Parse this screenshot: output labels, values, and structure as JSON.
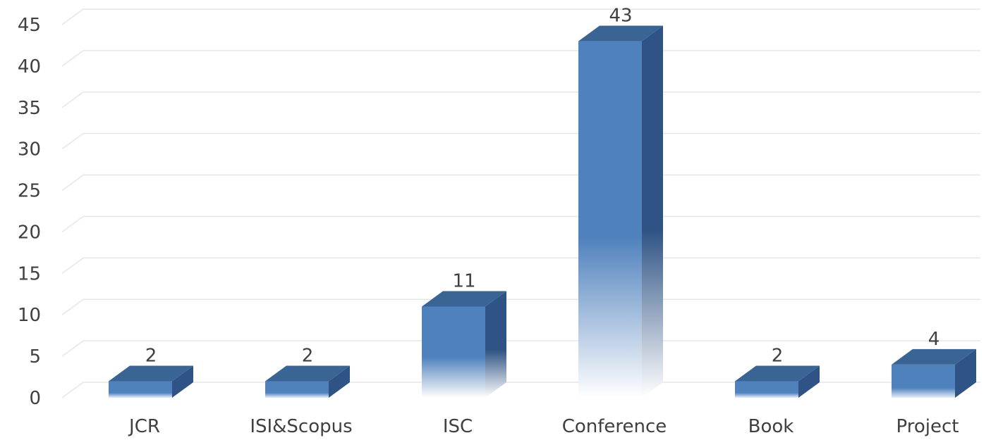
{
  "chart_data": {
    "type": "bar",
    "style": "3d-column",
    "categories": [
      "JCR",
      "ISI&Scopus",
      "ISC",
      "Conference",
      "Book",
      "Project"
    ],
    "values": [
      2,
      2,
      11,
      43,
      2,
      4
    ],
    "data_labels": [
      "2",
      "2",
      "11",
      "43",
      "2",
      "4"
    ],
    "y_ticks": [
      "0",
      "5",
      "10",
      "15",
      "20",
      "25",
      "30",
      "35",
      "40",
      "45"
    ],
    "ylim": [
      0,
      45
    ],
    "grid": true,
    "legend": "none",
    "title": "",
    "xlabel": "",
    "ylabel": "",
    "colors": {
      "bar_front": "#4f81bd",
      "bar_top": "#3a6494",
      "bar_side": "#2f5384",
      "grid": "#e6e6e6",
      "text": "#404040"
    }
  }
}
